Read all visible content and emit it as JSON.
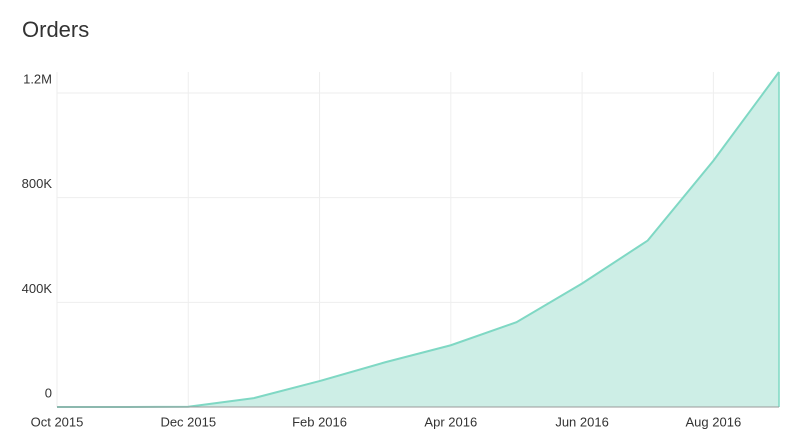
{
  "chart_data": {
    "type": "area",
    "title": "Orders",
    "x": [
      "2015-10",
      "2015-11",
      "2015-12",
      "2016-01",
      "2016-02",
      "2016-03",
      "2016-04",
      "2016-05",
      "2016-06",
      "2016-07",
      "2016-08",
      "2016-09"
    ],
    "values": [
      0,
      0,
      1000,
      34000,
      99000,
      171000,
      236000,
      324000,
      472000,
      636000,
      941000,
      1280000
    ],
    "color": "#7fd8c4",
    "fill": "#cdeee6",
    "xlim": [
      "2015-10",
      "2016-09"
    ],
    "xticks": [
      {
        "value": "2015-10",
        "label": "Oct 2015"
      },
      {
        "value": "2015-12",
        "label": "Dec 2015"
      },
      {
        "value": "2016-02",
        "label": "Feb 2016"
      },
      {
        "value": "2016-04",
        "label": "Apr 2016"
      },
      {
        "value": "2016-06",
        "label": "Jun 2016"
      },
      {
        "value": "2016-08",
        "label": "Aug 2016"
      }
    ],
    "ylim": [
      0,
      1280000
    ],
    "yticks": [
      0,
      {
        "value": 400000,
        "label": "400K"
      },
      {
        "value": 800000,
        "label": "800K"
      },
      {
        "value": 1200000,
        "label": "1.2M"
      }
    ],
    "grid": true
  }
}
